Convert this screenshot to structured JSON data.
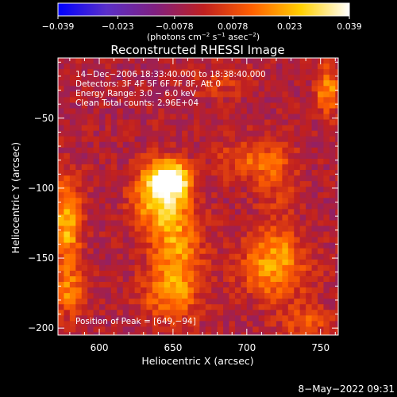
{
  "colorbar": {
    "ticks": [
      "−0.039",
      "−0.023",
      "−0.0078",
      "0.0078",
      "0.023",
      "0.039"
    ],
    "tick_values": [
      -0.039,
      -0.023,
      -0.0078,
      0.0078,
      0.023,
      0.039
    ],
    "unit_prefix": "(photons cm",
    "unit_exp1": "−2",
    "unit_mid": " s",
    "unit_exp2": "−1",
    "unit_mid2": " asec",
    "unit_exp3": "−2",
    "unit_suffix": ")",
    "stops": [
      "#0000ff",
      "#5a2fc8",
      "#802080",
      "#c02020",
      "#ff6000",
      "#ffd000",
      "#ffffff"
    ]
  },
  "chart_data": {
    "type": "heatmap",
    "title": "Reconstructed RHESSI Image",
    "xlabel": "Heliocentric X (arcsec)",
    "ylabel": "Heliocentric Y (arcsec)",
    "xlim": [
      572,
      762
    ],
    "ylim": [
      -205,
      -7
    ],
    "xticks": [
      600,
      650,
      700,
      750
    ],
    "yticks": [
      -50,
      -100,
      -150,
      -200
    ],
    "xtick_labels": [
      "600",
      "650",
      "700",
      "750"
    ],
    "ytick_labels": [
      "−50",
      "−100",
      "−150",
      "−200"
    ],
    "annotations": [
      "14−Dec−2006 18:33:40.000 to 18:38:40.000",
      "Detectors: 3F 4F 5F 6F 7F 8F, Att 0",
      "Energy Range: 3.0 − 6.0 keV",
      "Clean     Total counts: 2.96E+04"
    ],
    "peak_label": "Position of Peak = [649,−94]",
    "peak": [
      649,
      -94
    ],
    "pixel_size_arcsec": 4,
    "sources": [
      {
        "x": 649,
        "y": -94,
        "amp": 0.039,
        "sx": 9,
        "sy": 8
      },
      {
        "x": 640,
        "y": -105,
        "amp": 0.03,
        "sx": 12,
        "sy": 16
      },
      {
        "x": 652,
        "y": -140,
        "amp": 0.022,
        "sx": 12,
        "sy": 22
      },
      {
        "x": 648,
        "y": -175,
        "amp": 0.018,
        "sx": 14,
        "sy": 14
      },
      {
        "x": 578,
        "y": -125,
        "amp": 0.028,
        "sx": 7,
        "sy": 22
      },
      {
        "x": 580,
        "y": -175,
        "amp": 0.018,
        "sx": 8,
        "sy": 12
      },
      {
        "x": 718,
        "y": -160,
        "amp": 0.022,
        "sx": 16,
        "sy": 14
      },
      {
        "x": 720,
        "y": -140,
        "amp": 0.012,
        "sx": 12,
        "sy": 10
      },
      {
        "x": 702,
        "y": -80,
        "amp": 0.014,
        "sx": 16,
        "sy": 10
      },
      {
        "x": 755,
        "y": -30,
        "amp": 0.022,
        "sx": 6,
        "sy": 12
      },
      {
        "x": 740,
        "y": -195,
        "amp": 0.014,
        "sx": 12,
        "sy": 8
      },
      {
        "x": 680,
        "y": -25,
        "amp": 0.008,
        "sx": 14,
        "sy": 8
      },
      {
        "x": 720,
        "y": -95,
        "amp": 0.01,
        "sx": 10,
        "sy": 18
      }
    ]
  },
  "footer": {
    "timestamp": "8−May−2022 09:31"
  }
}
